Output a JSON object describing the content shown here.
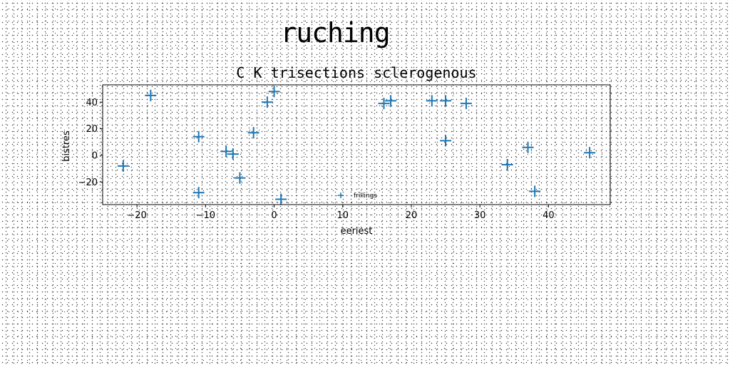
{
  "figure": {
    "suptitle": "ruching"
  },
  "chart_data": {
    "type": "scatter",
    "title": "C K trisections sclerogenous",
    "xlabel": "eeriest",
    "ylabel": "bistres",
    "xlim": [
      -25,
      49
    ],
    "ylim": [
      -37,
      53
    ],
    "xticks": [
      -20,
      -10,
      0,
      10,
      20,
      30,
      40
    ],
    "yticks": [
      -20,
      0,
      20,
      40
    ],
    "grid": false,
    "legend_position": "lower center",
    "marker": "plus",
    "color": "#1f77b4",
    "series": [
      {
        "name": "frillings",
        "points": [
          [
            -22,
            -8
          ],
          [
            -18,
            45
          ],
          [
            -11,
            14
          ],
          [
            -11,
            -28
          ],
          [
            -7,
            3
          ],
          [
            -6,
            1
          ],
          [
            -5,
            -17
          ],
          [
            -3,
            17
          ],
          [
            -1,
            40
          ],
          [
            0,
            48
          ],
          [
            1,
            -33
          ],
          [
            16,
            39
          ],
          [
            17,
            41
          ],
          [
            23,
            41
          ],
          [
            25,
            41
          ],
          [
            25,
            11
          ],
          [
            28,
            39
          ],
          [
            34,
            -7
          ],
          [
            37,
            6
          ],
          [
            38,
            -27
          ],
          [
            46,
            2
          ]
        ]
      }
    ]
  }
}
